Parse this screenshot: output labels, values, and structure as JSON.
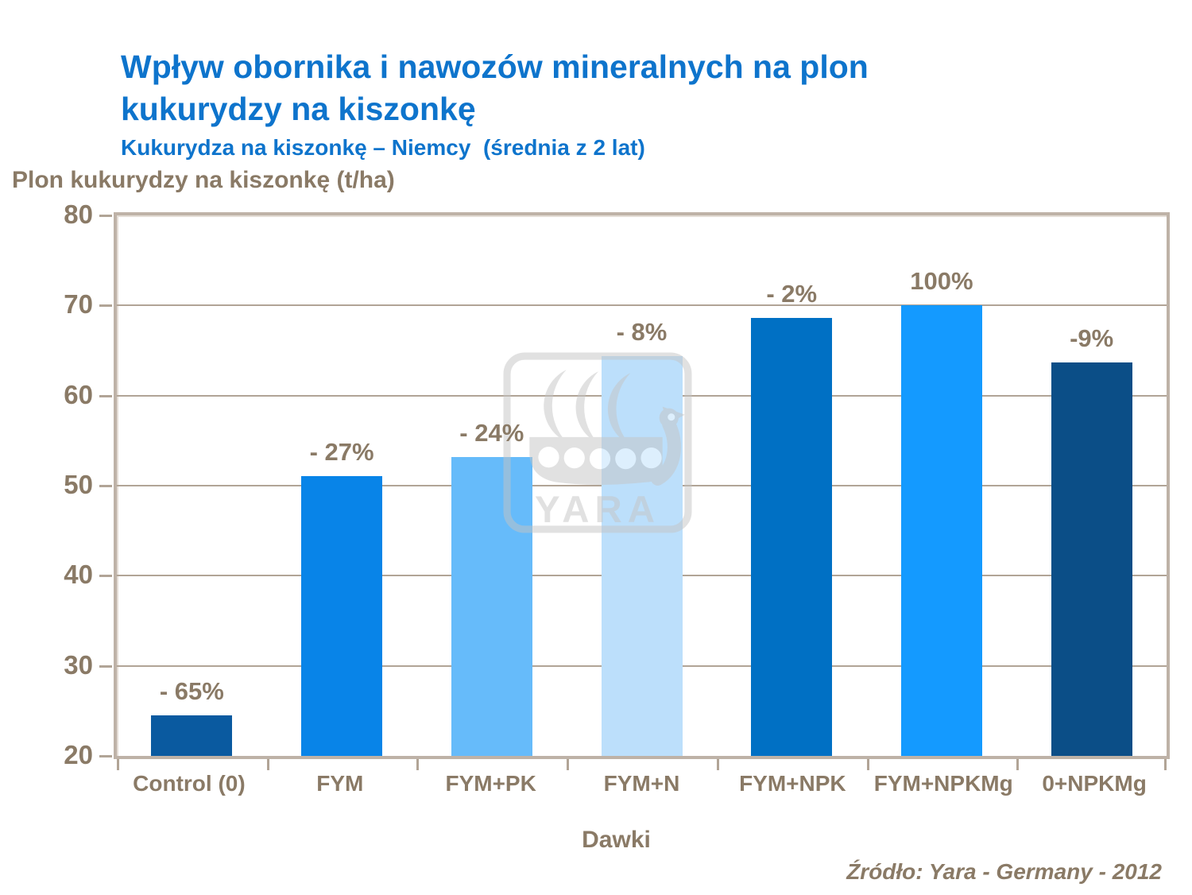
{
  "chart_data": {
    "type": "bar",
    "title": "Wpływ obornika i nawozów mineralnych na plon kukurydzy na kiszonkę",
    "subtitle": "Kukurydza na kiszonkę – Niemcy  (średnia z 2 lat)",
    "ylabel": "Plon kukurydzy na kiszonkę (t/ha)",
    "xlabel": "Dawki",
    "source": "Źródło: Yara - Germany - 2012",
    "categories": [
      "Control (0)",
      "FYM",
      "FYM+PK",
      "FYM+N",
      "FYM+NPK",
      "FYM+NPKMg",
      "0+NPKMg"
    ],
    "values": [
      24.5,
      51.1,
      53.2,
      64.4,
      68.6,
      70,
      63.7
    ],
    "bar_labels": [
      "- 65%",
      "- 27%",
      "- 24%",
      "- 8%",
      "- 2%",
      "100%",
      "-9%"
    ],
    "bar_colors": [
      "#0A5AA0",
      "#0884E8",
      "#66BBFA",
      "#BCDFFB",
      "#0070C4",
      "#149AFF",
      "#0B4E87"
    ],
    "ylim": [
      20,
      80
    ],
    "yticks": [
      20,
      30,
      40,
      50,
      60,
      70,
      80
    ],
    "grid": true,
    "legend": "none",
    "colors": {
      "title": "#0E74CC",
      "axis_text": "#8A7A66",
      "gridline": "#B1A496",
      "plot_border": "#BEB2A7"
    }
  },
  "watermark": {
    "text": "YARA"
  }
}
